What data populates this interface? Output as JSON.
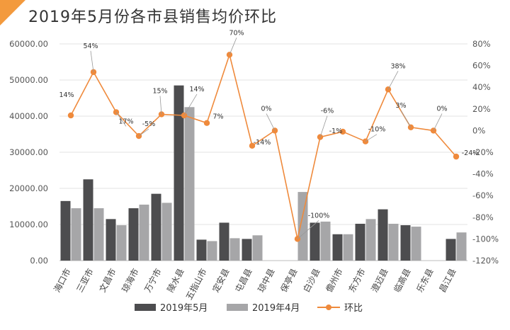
{
  "title": "2019年5月份各市县销售均价环比",
  "chart_data": {
    "type": "bar+line",
    "title": "2019年5月份各市县销售均价环比",
    "categories": [
      "海口市",
      "三亚市",
      "文昌市",
      "琼海市",
      "万宁市",
      "陵水县",
      "五指山市",
      "定安县",
      "屯昌县",
      "琼中县",
      "保亭县",
      "白沙县",
      "儋州市",
      "东方市",
      "澄迈县",
      "临高县",
      "乐东县",
      "昌江县"
    ],
    "series": [
      {
        "name": "2019年5月",
        "axis": "left",
        "values": [
          16500,
          22500,
          11500,
          14500,
          18500,
          48500,
          5800,
          10500,
          6000,
          0,
          0,
          10500,
          7300,
          10200,
          14200,
          9800,
          0,
          6000
        ]
      },
      {
        "name": "2019年4月",
        "axis": "left",
        "values": [
          14500,
          14500,
          9800,
          15500,
          16000,
          42500,
          5400,
          6200,
          7000,
          0,
          19000,
          10800,
          7300,
          11500,
          10200,
          9400,
          0,
          7800
        ]
      },
      {
        "name": "环比",
        "axis": "right",
        "type": "line",
        "values": [
          14,
          54,
          17,
          -5,
          15,
          14,
          7,
          70,
          -14,
          0,
          -100,
          -6,
          -1,
          -10,
          38,
          3,
          0,
          -24
        ],
        "labels": [
          "14%",
          "54%",
          "17%",
          "-5%",
          "15%",
          "14%",
          "7%",
          "70%",
          "-14%",
          "0%",
          "-100%",
          "-6%",
          "-1%",
          "-10%",
          "38%",
          "3%",
          "0%",
          "-24%"
        ]
      }
    ],
    "yleft_ticks": [
      "0.00",
      "10000.00",
      "20000.00",
      "30000.00",
      "40000.00",
      "50000.00",
      "60000.00"
    ],
    "yleft_range": [
      0,
      60000
    ],
    "yright_ticks": [
      "80%",
      "60%",
      "40%",
      "20%",
      "0%",
      "-20%",
      "-40%",
      "-60%",
      "-80%",
      "-100%",
      "-120%"
    ],
    "yright_range": [
      -120,
      80
    ],
    "legend": [
      "2019年5月",
      "2019年4月",
      "环比"
    ],
    "legend_position": "bottom",
    "colors": {
      "may": "#4d4d4f",
      "april": "#a6a6a8",
      "line": "#ef8a3c",
      "accent": "#f39a3d"
    }
  }
}
